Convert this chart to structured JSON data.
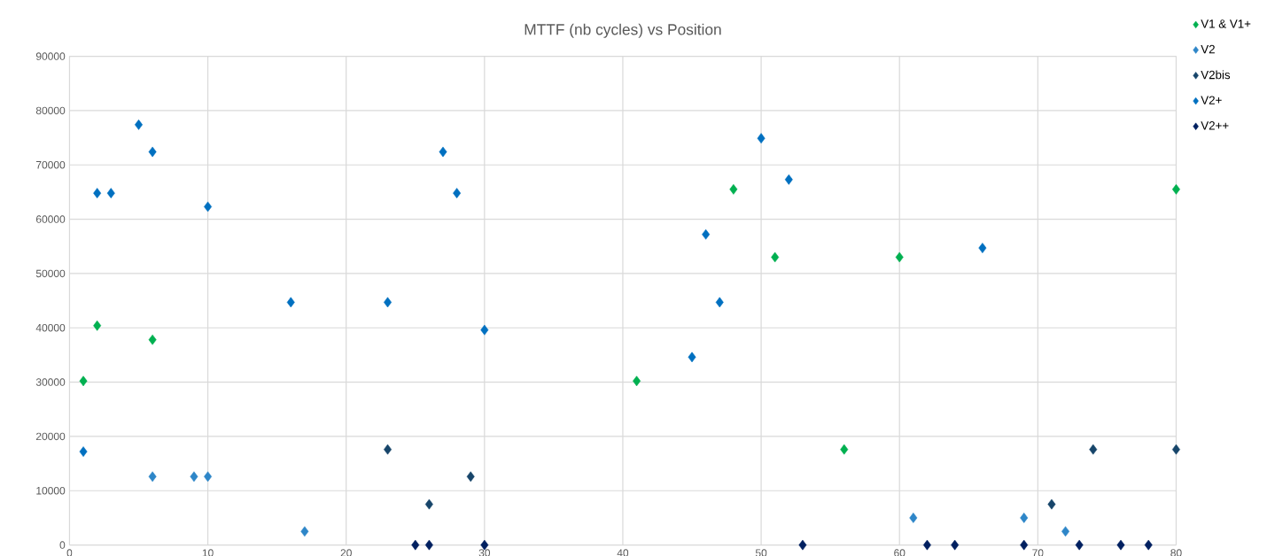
{
  "chart_data": {
    "type": "scatter",
    "title": "MTTF (nb cycles) vs Position",
    "xlim": [
      0,
      80
    ],
    "xticks": [
      0,
      10,
      20,
      30,
      40,
      50,
      60,
      70,
      80
    ],
    "ylim": [
      0,
      90000
    ],
    "yticks": [
      0,
      10000,
      20000,
      30000,
      40000,
      50000,
      60000,
      70000,
      80000,
      90000
    ],
    "grid": true,
    "legend": "top right",
    "marker": "diamond",
    "series": [
      {
        "name": "V1 & V1+",
        "color": "#00b050",
        "x": [
          1,
          2,
          6,
          41,
          48,
          51,
          56,
          60,
          80
        ],
        "values": [
          30200,
          40400,
          37800,
          30200,
          65500,
          53000,
          17600,
          53000,
          65500
        ]
      },
      {
        "name": "V2",
        "color": "#2e86c8",
        "x": [
          6,
          9,
          10,
          17,
          61,
          69,
          72
        ],
        "values": [
          12600,
          12600,
          12600,
          2500,
          5000,
          5000,
          2500
        ]
      },
      {
        "name": "V2bis",
        "color": "#17456a",
        "x": [
          23,
          26,
          29,
          71,
          74,
          80
        ],
        "values": [
          17600,
          7500,
          12600,
          7500,
          17600,
          17600
        ]
      },
      {
        "name": "V2+",
        "color": "#0070c0",
        "x": [
          1,
          2,
          3,
          5,
          6,
          10,
          16,
          23,
          27,
          28,
          30,
          45,
          46,
          47,
          50,
          52,
          66
        ],
        "values": [
          17200,
          64800,
          64800,
          77400,
          72400,
          62300,
          44700,
          44700,
          72400,
          64800,
          39600,
          34600,
          57200,
          44700,
          74900,
          67300,
          54700
        ]
      },
      {
        "name": "V2++",
        "color": "#002060",
        "x": [
          25,
          26,
          30,
          53,
          62,
          64,
          69,
          73,
          76,
          78
        ],
        "values": [
          0,
          0,
          0,
          0,
          0,
          0,
          0,
          0,
          0,
          0
        ]
      }
    ]
  }
}
